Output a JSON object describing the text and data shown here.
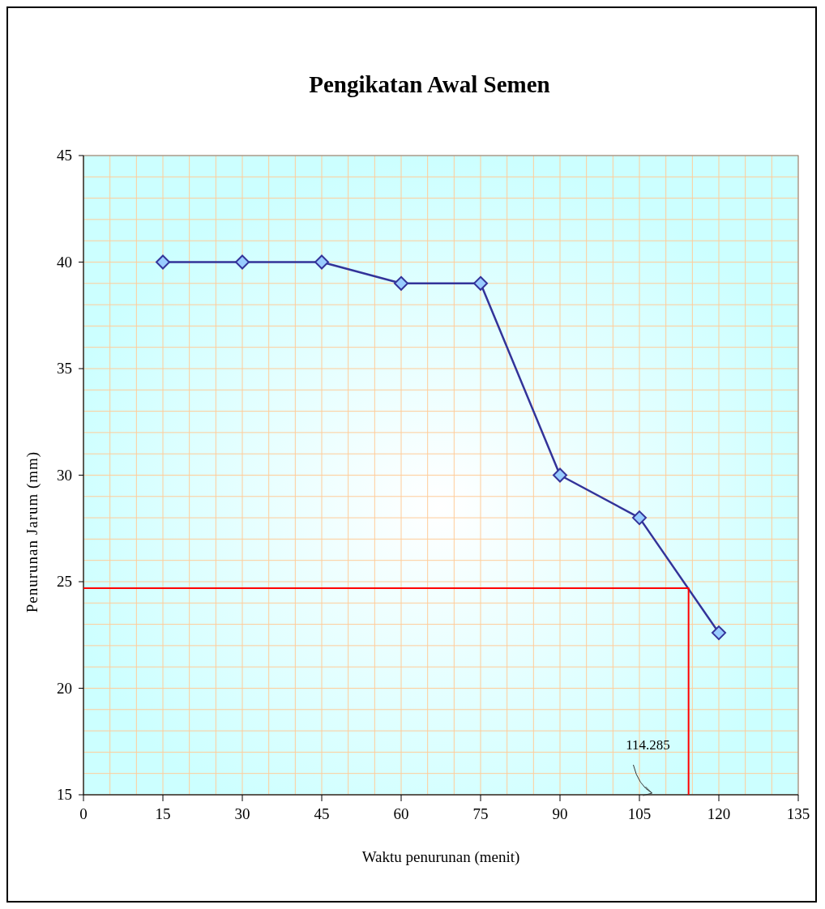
{
  "chart_data": {
    "type": "line",
    "title": "Pengikatan Awal Semen",
    "xlabel": "Waktu penurunan (menit)",
    "ylabel": "Penurunan Jarum (mm)",
    "xlim": [
      0,
      135
    ],
    "xticks": [
      0,
      15,
      30,
      45,
      60,
      75,
      90,
      105,
      120,
      135
    ],
    "ylim": [
      15,
      45
    ],
    "yticks": [
      15,
      20,
      25,
      30,
      35,
      40,
      45
    ],
    "grid": true,
    "series": [
      {
        "color": "#333399",
        "marker": "diamond",
        "x": [
          15,
          30,
          45,
          60,
          75,
          90,
          105,
          120
        ],
        "values": [
          40,
          40,
          40,
          39,
          39,
          30,
          28,
          22.6
        ]
      },
      {
        "color": "#ff0000",
        "marker": "none",
        "x": [
          0,
          114.285,
          114.285
        ],
        "values": [
          24.7,
          24.7,
          15
        ]
      }
    ],
    "annotations": [
      "114.285"
    ]
  }
}
